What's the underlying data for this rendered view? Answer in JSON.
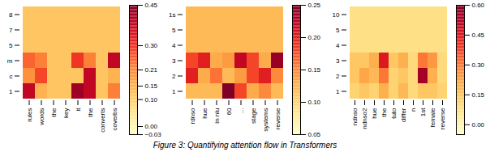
{
  "chart_data": [
    {
      "type": "heatmap",
      "x": [
        "rules",
        "words",
        "the",
        "key",
        "it",
        "the",
        "converts",
        "coverbs"
      ],
      "y": [
        "8",
        "7",
        "5",
        "m",
        "c",
        "1"
      ],
      "values": [
        [
          0.12,
          0.12,
          0.12,
          0.12,
          0.12,
          0.12,
          0.12,
          0.12
        ],
        [
          0.12,
          0.12,
          0.12,
          0.12,
          0.12,
          0.12,
          0.12,
          0.12
        ],
        [
          0.12,
          0.12,
          0.12,
          0.12,
          0.12,
          0.12,
          0.12,
          0.12
        ],
        [
          0.25,
          0.22,
          0.12,
          0.12,
          0.3,
          0.22,
          0.12,
          0.38
        ],
        [
          0.2,
          0.28,
          0.12,
          0.12,
          0.12,
          0.38,
          0.12,
          0.15
        ],
        [
          0.38,
          0.15,
          0.12,
          0.12,
          0.42,
          0.38,
          0.12,
          0.22
        ]
      ],
      "color": "YlOrRd",
      "colorbar_range": [
        -0.03,
        0.45
      ],
      "colorbar_ticks": [
        0.45,
        {
          "value": 0.3,
          "label": "0.30"
        },
        0.21,
        0.15,
        {
          "value": 0.1,
          "label": "0.10"
        },
        {
          "value": 0.0,
          "label": "0.00"
        },
        {
          "value": -0.03,
          "label": "−0.03"
        }
      ]
    },
    {
      "type": "heatmap",
      "x": [
        "rdnso",
        "hue",
        "in nlu",
        "60",
        "...",
        "stage",
        "systems",
        "reverse"
      ],
      "y": [
        "1s",
        "5",
        "4",
        "3",
        "2",
        "1"
      ],
      "values": [
        [
          0.12,
          0.12,
          0.12,
          0.12,
          0.12,
          0.12,
          0.12,
          0.12
        ],
        [
          0.12,
          0.12,
          0.12,
          0.12,
          0.12,
          0.12,
          0.12,
          0.12
        ],
        [
          0.12,
          0.12,
          0.12,
          0.12,
          0.12,
          0.12,
          0.12,
          0.12
        ],
        [
          0.18,
          0.2,
          0.13,
          0.14,
          0.22,
          0.18,
          0.13,
          0.24
        ],
        [
          0.2,
          0.13,
          0.16,
          0.12,
          0.14,
          0.18,
          0.2,
          0.15
        ],
        [
          0.12,
          0.12,
          0.12,
          0.25,
          0.18,
          0.13,
          0.15,
          0.12
        ]
      ],
      "color": "YlOrRd",
      "colorbar_range": [
        0.05,
        0.25
      ],
      "colorbar_ticks": [
        0.25,
        {
          "value": 0.2,
          "label": "0.20"
        },
        0.15,
        {
          "value": 0.1,
          "label": "0.10"
        },
        0.05
      ]
    },
    {
      "type": "heatmap",
      "x": [
        "ndnso",
        "ndnso2",
        "hue",
        "the",
        "tuto",
        "differ",
        "n",
        "1st",
        "female",
        "reverse"
      ],
      "y": [
        "10",
        "5",
        "4",
        "3",
        "2",
        "1"
      ],
      "values": [
        [
          0.08,
          0.08,
          0.08,
          0.08,
          0.08,
          0.08,
          0.08,
          0.08,
          0.08,
          0.08
        ],
        [
          0.08,
          0.08,
          0.08,
          0.08,
          0.08,
          0.08,
          0.08,
          0.08,
          0.08,
          0.08
        ],
        [
          0.08,
          0.08,
          0.08,
          0.08,
          0.08,
          0.08,
          0.08,
          0.08,
          0.08,
          0.08
        ],
        [
          0.15,
          0.15,
          0.2,
          0.45,
          0.15,
          0.2,
          0.1,
          0.3,
          0.25,
          0.1
        ],
        [
          0.15,
          0.22,
          0.18,
          0.3,
          0.12,
          0.15,
          0.1,
          0.55,
          0.2,
          0.1
        ],
        [
          0.12,
          0.15,
          0.12,
          0.2,
          0.12,
          0.18,
          0.1,
          0.15,
          0.15,
          0.12
        ]
      ],
      "color": "YlOrRd",
      "colorbar_range": [
        -0.05,
        0.6
      ],
      "colorbar_ticks": [
        {
          "value": 0.6,
          "label": "0.60"
        },
        0.45,
        {
          "value": 0.3,
          "label": "0.30"
        },
        0.15,
        {
          "value": 0.0,
          "label": "0.00"
        }
      ]
    }
  ],
  "caption": "Figure 3: Quantifying attention flow in Transformers"
}
